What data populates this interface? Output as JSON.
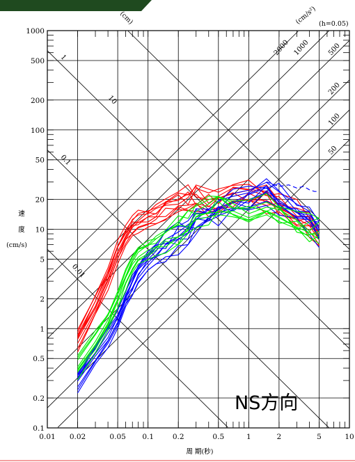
{
  "chart_data": {
    "type": "line",
    "scale": "log-log tripartite",
    "xlabel": "周 期(秒)",
    "ylabel_chars": [
      "速",
      "度"
    ],
    "ylabel_unit": "(cm/s)",
    "damping_label": "(h=0.05)",
    "displacement_unit": "(cm)",
    "acceleration_unit": "(cm/s²)",
    "direction_label": "NS方向",
    "xlim": [
      0.01,
      10
    ],
    "ylim": [
      0.1,
      1000
    ],
    "grid": true,
    "x_ticks": [
      {
        "v": 0.01,
        "label": "0.01"
      },
      {
        "v": 0.02,
        "label": "0.02"
      },
      {
        "v": 0.05,
        "label": "0.05"
      },
      {
        "v": 0.1,
        "label": "0.1"
      },
      {
        "v": 0.2,
        "label": "0.2"
      },
      {
        "v": 0.5,
        "label": "0.5"
      },
      {
        "v": 1,
        "label": "1"
      },
      {
        "v": 2,
        "label": "2"
      },
      {
        "v": 5,
        "label": "5"
      },
      {
        "v": 10,
        "label": "10"
      }
    ],
    "y_ticks": [
      {
        "v": 0.1,
        "label": "0.1"
      },
      {
        "v": 0.2,
        "label": "0.2"
      },
      {
        "v": 0.5,
        "label": "0.5"
      },
      {
        "v": 1,
        "label": "1"
      },
      {
        "v": 2,
        "label": "2"
      },
      {
        "v": 5,
        "label": "5"
      },
      {
        "v": 10,
        "label": "10"
      },
      {
        "v": 20,
        "label": "20"
      },
      {
        "v": 50,
        "label": "50"
      },
      {
        "v": 100,
        "label": "100"
      },
      {
        "v": 200,
        "label": "200"
      },
      {
        "v": 500,
        "label": "500"
      },
      {
        "v": 1000,
        "label": "1000"
      }
    ],
    "displacement_lines": [
      {
        "v": 10,
        "label": "10"
      },
      {
        "v": 1,
        "label": "1"
      },
      {
        "v": 0.1,
        "label": "0.1"
      },
      {
        "v": 0.01,
        "label": "0.01"
      }
    ],
    "acceleration_lines": [
      {
        "v": 2000,
        "label": "2000"
      },
      {
        "v": 1000,
        "label": "1000"
      },
      {
        "v": 500,
        "label": "500"
      },
      {
        "v": 200,
        "label": "200"
      },
      {
        "v": 100,
        "label": "100"
      },
      {
        "v": 50,
        "label": "50"
      }
    ],
    "groups": [
      {
        "color": "#ff0000",
        "count": 10,
        "x": [
          0.02,
          0.03,
          0.04,
          0.05,
          0.06,
          0.07,
          0.08,
          0.1,
          0.12,
          0.15,
          0.2,
          0.25,
          0.3,
          0.4,
          0.5,
          0.7,
          1.0,
          1.5,
          2.0,
          3.0,
          4.0,
          5.0
        ],
        "y": [
          0.8,
          1.7,
          3.2,
          6.0,
          8.5,
          11.0,
          12.0,
          13.0,
          14.0,
          16.0,
          18.0,
          20.0,
          21.0,
          19.0,
          20.0,
          22.0,
          24.0,
          22.0,
          18.0,
          14.0,
          12.0,
          9.0
        ]
      },
      {
        "color": "#0000ff",
        "count": 10,
        "x": [
          0.02,
          0.03,
          0.04,
          0.05,
          0.06,
          0.07,
          0.08,
          0.1,
          0.12,
          0.15,
          0.2,
          0.25,
          0.3,
          0.4,
          0.5,
          0.7,
          1.0,
          1.5,
          2.0,
          3.0,
          4.0,
          5.0
        ],
        "y": [
          0.3,
          0.55,
          0.85,
          1.3,
          2.0,
          2.8,
          3.6,
          4.8,
          5.8,
          7.0,
          8.5,
          10.0,
          12.0,
          14.0,
          16.0,
          18.0,
          20.0,
          26.0,
          20.0,
          16.0,
          13.0,
          10.0
        ]
      },
      {
        "color": "#00ee00",
        "count": 8,
        "x": [
          0.02,
          0.03,
          0.04,
          0.05,
          0.06,
          0.07,
          0.08,
          0.1,
          0.12,
          0.15,
          0.2,
          0.25,
          0.3,
          0.4,
          0.5,
          0.7,
          1.0,
          1.5,
          2.0,
          3.0,
          4.0,
          5.0
        ],
        "y": [
          0.42,
          0.75,
          1.2,
          2.0,
          3.2,
          4.5,
          5.5,
          6.5,
          7.0,
          8.0,
          10.0,
          12.0,
          14.0,
          16.0,
          18.0,
          15.0,
          14.0,
          16.0,
          14.0,
          11.0,
          10.0,
          10.0
        ]
      }
    ],
    "dashed_series": {
      "color": "#0000ff",
      "x": [
        1.5,
        2.0,
        2.5,
        3.0,
        3.5,
        4.0,
        4.5,
        5.0
      ],
      "y": [
        30,
        27,
        28,
        26,
        27,
        25,
        24,
        24
      ]
    }
  }
}
